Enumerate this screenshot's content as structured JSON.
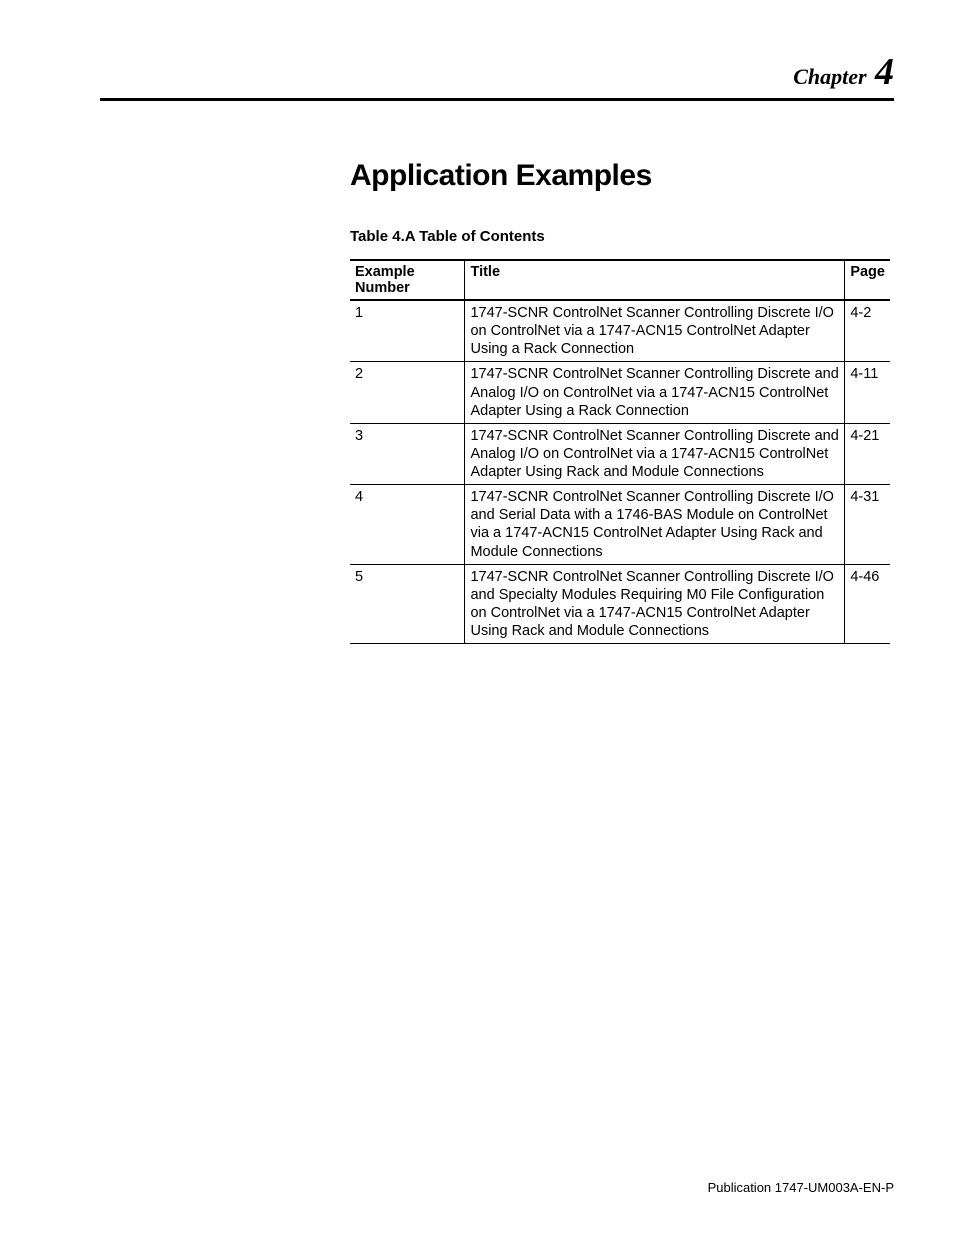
{
  "chapter": {
    "label": "Chapter",
    "number": "4"
  },
  "title": "Application Examples",
  "table_caption": "Table 4.A Table of Contents",
  "columns": {
    "example_number": "Example Number",
    "title": "Title",
    "page": "Page"
  },
  "rows": [
    {
      "number": "1",
      "title": "1747-SCNR ControlNet Scanner Controlling Discrete I/O on ControlNet via a 1747-ACN15 ControlNet Adapter Using a Rack Connection",
      "page": "4-2"
    },
    {
      "number": "2",
      "title": "1747-SCNR ControlNet Scanner Controlling Discrete and Analog I/O on ControlNet via a 1747-ACN15 ControlNet Adapter Using a Rack Connection",
      "page": "4-11"
    },
    {
      "number": "3",
      "title": "1747-SCNR ControlNet Scanner Controlling Discrete and Analog I/O on ControlNet via a 1747-ACN15 ControlNet Adapter Using Rack and Module Connections",
      "page": "4-21"
    },
    {
      "number": "4",
      "title": "1747-SCNR ControlNet Scanner Controlling Discrete I/O and Serial Data with a 1746-BAS Module on ControlNet via a 1747-ACN15 ControlNet Adapter Using Rack and Module Connections",
      "page": "4-31"
    },
    {
      "number": "5",
      "title": "1747-SCNR ControlNet Scanner Controlling Discrete I/O and Specialty Modules Requiring M0 File Configuration on ControlNet via a 1747-ACN15 ControlNet Adapter Using Rack and Module Connections",
      "page": "4-46"
    }
  ],
  "footer": "Publication 1747-UM003A-EN-P"
}
